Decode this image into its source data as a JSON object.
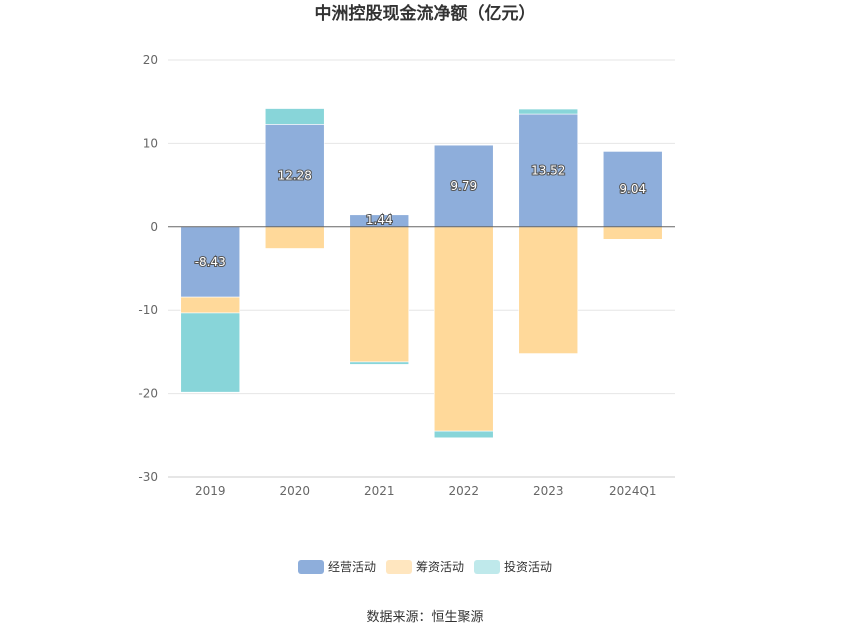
{
  "chart_data": {
    "type": "bar",
    "stacked": true,
    "title": "中洲控股现金流净额（亿元）",
    "categories": [
      "2019",
      "2020",
      "2021",
      "2022",
      "2023",
      "2024Q1"
    ],
    "series": [
      {
        "name": "经营活动",
        "color": "#8eaedb",
        "values": [
          -8.43,
          12.28,
          1.44,
          9.79,
          13.52,
          9.04
        ],
        "labels": [
          "-8.43",
          "12.28",
          "1.44",
          "9.79",
          "13.52",
          "9.04"
        ]
      },
      {
        "name": "筹资活动",
        "color": "#ffd99a",
        "values": [
          -1.9,
          -2.6,
          -16.2,
          -24.5,
          -15.2,
          -1.5
        ]
      },
      {
        "name": "投资活动",
        "color": "#88d5d9",
        "values": [
          -9.5,
          1.9,
          -0.3,
          -0.8,
          0.6,
          0
        ]
      }
    ],
    "ylim": [
      -30,
      20
    ],
    "yticks": [
      20,
      10,
      0,
      -10,
      -20,
      -30
    ],
    "grid": true,
    "legend_position": "bottom"
  },
  "legend": {
    "colors": [
      "#8eaedb",
      "#ffe6bf",
      "#bfe9eb"
    ]
  },
  "source": "数据来源：恒生聚源"
}
